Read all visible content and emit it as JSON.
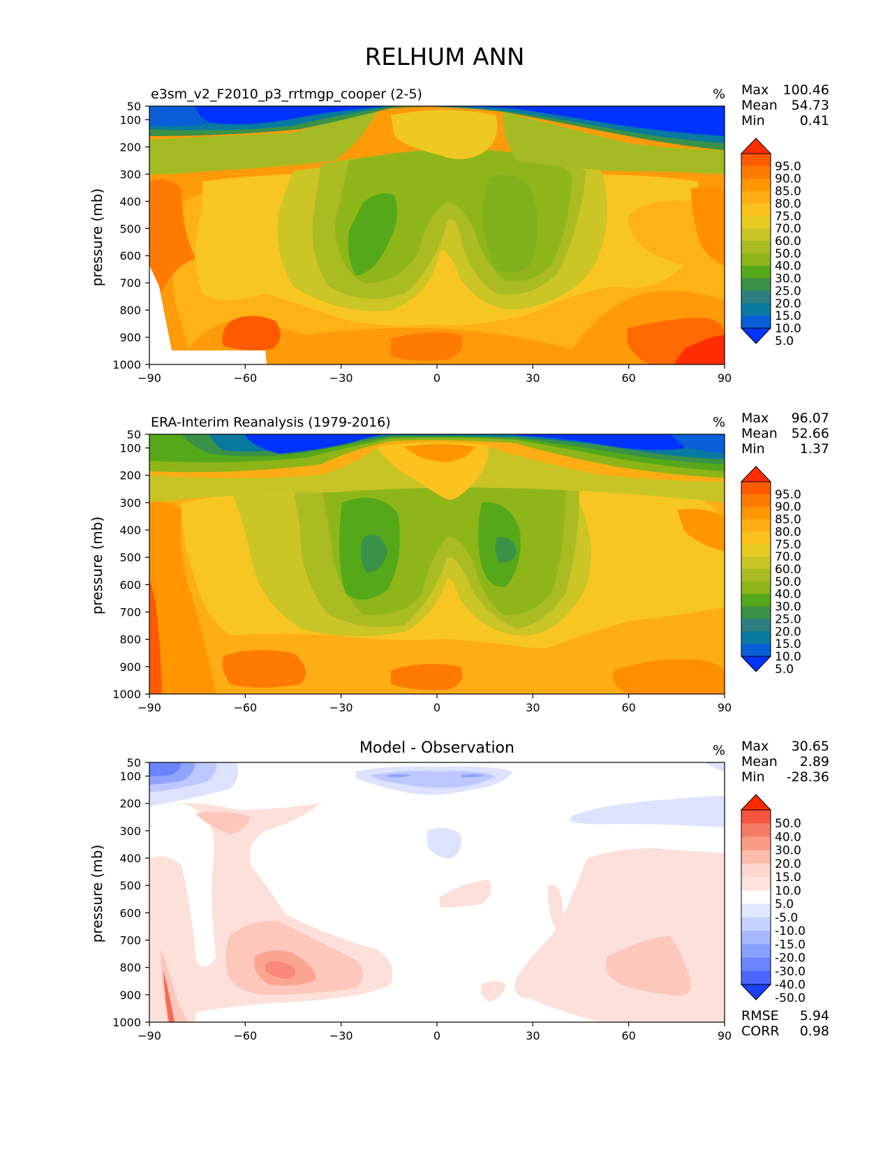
{
  "figure_title": "RELHUM ANN",
  "chart_data": [
    {
      "type": "heatmap",
      "title": "e3sm_v2_F2010_p3_rrtmgp_cooper (2-5)",
      "units": "%",
      "xlabel": "",
      "ylabel": "pressure (mb)",
      "xlim": [
        -90,
        90
      ],
      "ylim": [
        1000,
        50
      ],
      "xticks": [
        "−90",
        "−60",
        "−30",
        "0",
        "30",
        "60",
        "90"
      ],
      "yticks": [
        "50",
        "100",
        "200",
        "300",
        "400",
        "500",
        "600",
        "700",
        "800",
        "900",
        "1000"
      ],
      "stats": [
        {
          "label": "Max",
          "value": "100.46"
        },
        {
          "label": "Mean",
          "value": "54.73"
        },
        {
          "label": "Min",
          "value": "0.41"
        }
      ],
      "colorbar_labels": [
        "95.0",
        "90.0",
        "85.0",
        "80.0",
        "75.0",
        "70.0",
        "60.0",
        "50.0",
        "40.0",
        "30.0",
        "25.0",
        "20.0",
        "15.0",
        "10.0",
        "5.0"
      ],
      "colorbar_colors": [
        "#ff2d00",
        "#ff5a00",
        "#ff7a00",
        "#ff9600",
        "#ffad14",
        "#fcc21e",
        "#e8cc22",
        "#c8c425",
        "#aabb22",
        "#8db518",
        "#55a81a",
        "#3a9148",
        "#2f7f82",
        "#087a9f",
        "#0a5fd8",
        "#0033ff"
      ]
    },
    {
      "type": "heatmap",
      "title": "ERA-Interim Reanalysis (1979-2016)",
      "units": "%",
      "xlabel": "",
      "ylabel": "pressure (mb)",
      "xlim": [
        -90,
        90
      ],
      "ylim": [
        1000,
        50
      ],
      "xticks": [
        "−90",
        "−60",
        "−30",
        "0",
        "30",
        "60",
        "90"
      ],
      "yticks": [
        "50",
        "100",
        "200",
        "300",
        "400",
        "500",
        "600",
        "700",
        "800",
        "900",
        "1000"
      ],
      "stats": [
        {
          "label": "Max",
          "value": "96.07"
        },
        {
          "label": "Mean",
          "value": "52.66"
        },
        {
          "label": "Min",
          "value": "1.37"
        }
      ],
      "colorbar_labels": [
        "95.0",
        "90.0",
        "85.0",
        "80.0",
        "75.0",
        "70.0",
        "60.0",
        "50.0",
        "40.0",
        "30.0",
        "25.0",
        "20.0",
        "15.0",
        "10.0",
        "5.0"
      ],
      "colorbar_colors": [
        "#ff2d00",
        "#ff5a00",
        "#ff7a00",
        "#ff9600",
        "#ffad14",
        "#fcc21e",
        "#e8cc22",
        "#c8c425",
        "#aabb22",
        "#8db518",
        "#55a81a",
        "#3a9148",
        "#2f7f82",
        "#087a9f",
        "#0a5fd8",
        "#0033ff"
      ]
    },
    {
      "type": "heatmap",
      "title": "Model - Observation",
      "units": "%",
      "xlabel": "",
      "ylabel": "pressure (mb)",
      "xlim": [
        -90,
        90
      ],
      "ylim": [
        1000,
        50
      ],
      "xticks": [
        "−90",
        "−60",
        "−30",
        "0",
        "30",
        "60",
        "90"
      ],
      "yticks": [
        "50",
        "100",
        "200",
        "300",
        "400",
        "500",
        "600",
        "700",
        "800",
        "900",
        "1000"
      ],
      "stats": [
        {
          "label": "Max",
          "value": "30.65"
        },
        {
          "label": "Mean",
          "value": "2.89"
        },
        {
          "label": "Min",
          "value": "-28.36"
        }
      ],
      "extra_stats": [
        {
          "label": "RMSE",
          "value": "5.94"
        },
        {
          "label": "CORR",
          "value": "0.98"
        }
      ],
      "colorbar_labels": [
        "50.0",
        "40.0",
        "30.0",
        "20.0",
        "15.0",
        "10.0",
        "5.0",
        "-5.0",
        "-10.0",
        "-15.0",
        "-20.0",
        "-30.0",
        "-40.0",
        "-50.0"
      ],
      "colorbar_colors": [
        "#ff2a00",
        "#f4553f",
        "#f47c66",
        "#fa9b85",
        "#fdbcab",
        "#fdd8cf",
        "#ffe3dd",
        "#ffffff",
        "#e2e8ff",
        "#c8d2ff",
        "#a8b8ff",
        "#8aa0ff",
        "#6a84ff",
        "#4a66ff",
        "#1a3fff"
      ]
    }
  ],
  "colors": {
    "red_pale": "#fde0da",
    "red_light": "#fcc8bc",
    "red_mid": "#fb9e8c",
    "red_strong": "#f46a55",
    "blue_pale": "#dde3ff",
    "blue_light": "#bcc8ff",
    "blue_mid": "#8fa4ff",
    "blue_strong": "#6a84ff"
  }
}
